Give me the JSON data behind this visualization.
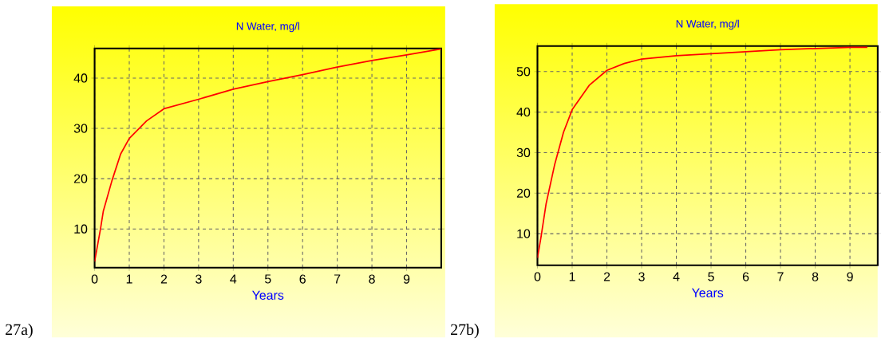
{
  "chart_data": [
    {
      "type": "line",
      "title": "N Water, mg/l",
      "xlabel": "Years",
      "annotations": [
        "27a)"
      ],
      "color": "#ff0000",
      "marker": "none",
      "line_style": "solid",
      "grid": true,
      "x": [
        0,
        0.17,
        0.25,
        0.5,
        0.75,
        1,
        1.5,
        2,
        3,
        4,
        5,
        6,
        7,
        8,
        9,
        10
      ],
      "values": [
        3.5,
        10,
        13.5,
        19.6,
        24.9,
        28,
        31.5,
        33.9,
        35.8,
        37.8,
        39.3,
        40.7,
        42.2,
        43.5,
        44.6,
        45.8
      ],
      "xlim": [
        0,
        10
      ],
      "ylim": [
        2.3,
        45.9
      ],
      "xticks": [
        0,
        1,
        2,
        3,
        4,
        5,
        6,
        7,
        8,
        9
      ],
      "yticks": [
        10,
        20,
        30,
        40
      ]
    },
    {
      "type": "line",
      "title": "N Water, mg/l",
      "xlabel": "Years",
      "annotations": [
        "27b)"
      ],
      "color": "#ff0000",
      "marker": "none",
      "line_style": "solid",
      "grid": true,
      "x": [
        0,
        0.1,
        0.25,
        0.5,
        0.75,
        1,
        1.5,
        2,
        2.5,
        3,
        4,
        5,
        6,
        7,
        8,
        9,
        9.5
      ],
      "values": [
        4,
        9,
        17.4,
        27.2,
        35,
        40.6,
        46.7,
        50.3,
        52,
        53.1,
        53.9,
        54.4,
        54.9,
        55.4,
        55.7,
        56,
        56
      ],
      "xlim": [
        0,
        9.8
      ],
      "ylim": [
        2.2,
        56.3
      ],
      "xticks": [
        0,
        1,
        2,
        3,
        4,
        5,
        6,
        7,
        8,
        9
      ],
      "yticks": [
        10,
        20,
        30,
        40,
        50
      ]
    }
  ]
}
